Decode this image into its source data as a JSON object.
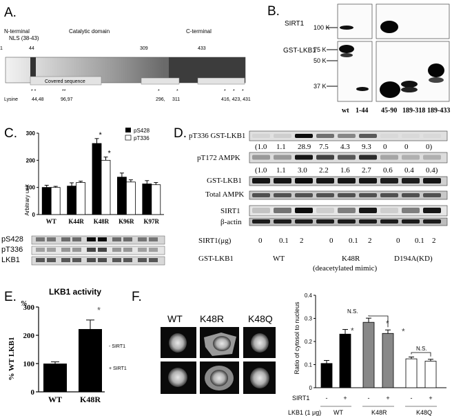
{
  "panelA": {
    "label": "A.",
    "n_terminal": "N-terminal",
    "nls": "NLS (38-43)",
    "catalytic": "Catalytic domain",
    "c_terminal": "C-terminal",
    "pos_1": "1",
    "pos_44": "44",
    "pos_309": "309",
    "pos_433": "433",
    "covered": "Covered sequence",
    "lysine": "Lysine",
    "lys_1": "44,48",
    "lys_2": "96,97",
    "lys_3": "296,",
    "lys_4": "311",
    "lys_5": "416, 423, 431"
  },
  "panelB": {
    "label": "B.",
    "sirt1": "SIRT1",
    "gst_lkb1": "GST-LKB1",
    "mw_100": "100 K",
    "mw_75": "75 K",
    "mw_50": "50 K",
    "mw_37": "37 K",
    "lanes": [
      "wt",
      "1-44",
      "45-90",
      "189-318",
      "189-433"
    ]
  },
  "panelC": {
    "label": "C.",
    "ylabel": "Arbitrary unit",
    "legend_ps428": "pS428",
    "legend_pt336": "pT336",
    "blot_rows": [
      "pS428",
      "pT336",
      "LKB1"
    ],
    "star": "*"
  },
  "panelD": {
    "label": "D.",
    "rows": [
      "pT336 GST-LKB1",
      "pT172 AMPK",
      "GST-LKB1",
      "Total AMPK",
      "SIRT1",
      "β-actin"
    ],
    "quant_pt336": [
      "(1.0",
      "1.1",
      "28.9",
      "7.5",
      "4.3",
      "9.3",
      "0",
      "0",
      "0)"
    ],
    "quant_pt172": [
      "(1.0",
      "1.1",
      "3.0",
      "2.2",
      "1.6",
      "2.7",
      "0.6",
      "0.4",
      "0.4)"
    ],
    "sirt1_label": "SIRT1(μg)",
    "sirt1_doses": [
      "0",
      "0.1",
      "2",
      "0",
      "0.1",
      "2",
      "0",
      "0.1",
      "2"
    ],
    "gst_label": "GST-LKB1",
    "group_wt": "WT",
    "group_k48r": "K48R",
    "group_kd": "D194A(KD)",
    "deacetylated": "(deacetylated mimic)"
  },
  "panelE": {
    "label": "E.",
    "title": "LKB1 activity",
    "percent": "%",
    "ylabel": "% WT LKB1",
    "minus_sirt1": "- SIRT1",
    "plus_sirt1": "+ SIRT1",
    "star": "*"
  },
  "panelF": {
    "label": "F.",
    "img_labels": [
      "WT",
      "K48R",
      "K48Q"
    ],
    "ylabel": "Ratio of cytosol to nucleus",
    "ns": "N.S.",
    "sirt1_row": "SIRT1",
    "lkb1_row": "LKB1 (1 μg)",
    "signs": [
      "-",
      "+",
      "-",
      "+",
      "-",
      "+"
    ],
    "groups": [
      "WT",
      "K48R",
      "K48Q"
    ],
    "star": "*"
  },
  "chart_data": [
    {
      "type": "bar",
      "panel": "C",
      "categories": [
        "WT",
        "K44R",
        "K48R",
        "K96R",
        "K97R"
      ],
      "series": [
        {
          "name": "pS428",
          "values": [
            100,
            105,
            262,
            138,
            113
          ],
          "errors": [
            8,
            12,
            18,
            15,
            12
          ],
          "color": "#000000"
        },
        {
          "name": "pT336",
          "values": [
            100,
            118,
            200,
            120,
            110
          ],
          "errors": [
            4,
            5,
            12,
            8,
            8
          ],
          "color": "#ffffff"
        }
      ],
      "significant": [
        [
          2,
          0
        ],
        [
          2,
          1
        ]
      ],
      "ylabel": "Arbitrary unit",
      "ylim": [
        0,
        300
      ],
      "yticks": [
        0,
        100,
        200,
        300
      ]
    },
    {
      "type": "bar",
      "panel": "E",
      "title": "LKB1 activity",
      "categories": [
        "WT",
        "K48R"
      ],
      "values": [
        100,
        222
      ],
      "errors": [
        6,
        32
      ],
      "ylabel": "% WT LKB1",
      "ylim": [
        0,
        300
      ],
      "yticks": [
        0,
        100,
        200,
        300
      ]
    },
    {
      "type": "bar",
      "panel": "F",
      "categories": [
        "WT -",
        "WT +",
        "K48R -",
        "K48R +",
        "K48Q -",
        "K48Q +"
      ],
      "values": [
        0.105,
        0.232,
        0.283,
        0.235,
        0.125,
        0.115
      ],
      "errors": [
        0.013,
        0.02,
        0.018,
        0.015,
        0.008,
        0.008
      ],
      "fill": [
        "#000000",
        "#000000",
        "#888888",
        "#888888",
        "#ffffff",
        "#ffffff"
      ],
      "ylabel": "Ratio of cytosol to nucleus",
      "ylim": [
        0,
        0.4
      ],
      "yticks": [
        0,
        0.1,
        0.2,
        0.3,
        0.4
      ],
      "ytick_labels": [
        "0",
        "0.1",
        "0.2",
        "0.3",
        "0.4"
      ]
    }
  ]
}
